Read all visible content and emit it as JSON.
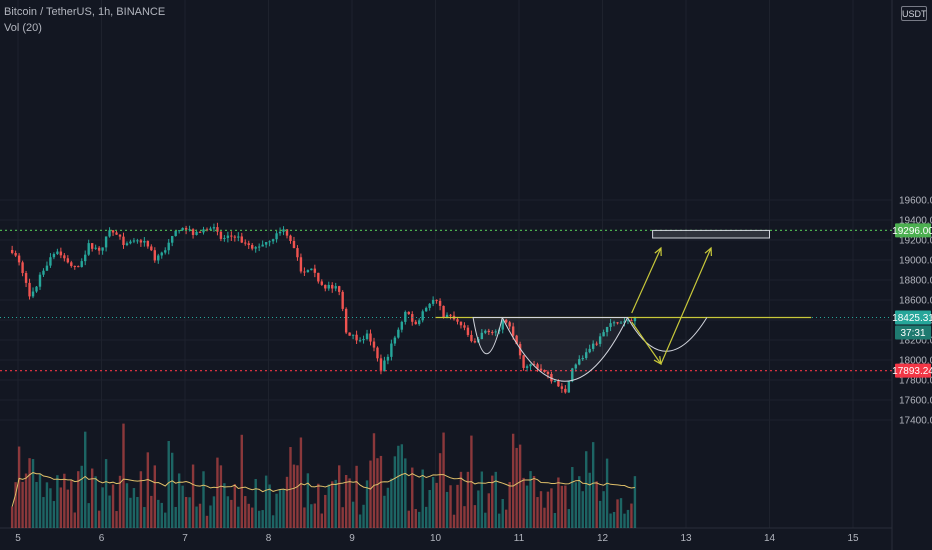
{
  "header": {
    "symbol": "Bitcoin / TetherUS, 1h, BINANCE",
    "volume_indicator": "Vol (20)"
  },
  "currency_label": "USDT",
  "colors": {
    "background": "#131722",
    "up_candle": "#26a69a",
    "down_candle": "#ef5350",
    "resistance": "#4caf50",
    "support": "#f23645",
    "annotation": "#c8c83a",
    "volume_ma": "#e0c06a"
  },
  "chart_data": {
    "type": "candlestick",
    "price_axis": {
      "ticks": [
        17400,
        17600,
        17800,
        18000,
        18200,
        18400,
        18600,
        18800,
        19000,
        19200,
        19400,
        19600
      ],
      "tick_labels": [
        "17400.00",
        "17600.00",
        "17800.00",
        "18000.00",
        "18200.00",
        "18400.00",
        "18600.00",
        "18800.00",
        "19000.00",
        "19200.00",
        "19400.00",
        "19600.00"
      ],
      "range": [
        17250,
        19600
      ]
    },
    "time_axis": {
      "labels": [
        "5",
        "6",
        "7",
        "8",
        "9",
        "10",
        "11",
        "12",
        "13",
        "14",
        "15"
      ],
      "day_range": [
        5,
        15.5
      ]
    },
    "price_tags": {
      "resistance": {
        "value": 19296.0,
        "label": "19296.00"
      },
      "current": {
        "value": 18425.31,
        "label": "18425.31",
        "countdown": "37:31"
      },
      "support": {
        "value": 17893.24,
        "label": "17893.24"
      }
    },
    "price_path": [
      [
        4.93,
        19100
      ],
      [
        5.05,
        18900
      ],
      [
        5.15,
        18600
      ],
      [
        5.3,
        18900
      ],
      [
        5.45,
        19100
      ],
      [
        5.7,
        18900
      ],
      [
        5.85,
        19150
      ],
      [
        6.0,
        19100
      ],
      [
        6.1,
        19300
      ],
      [
        6.3,
        19150
      ],
      [
        6.5,
        19200
      ],
      [
        6.65,
        19000
      ],
      [
        6.8,
        19150
      ],
      [
        6.95,
        19350
      ],
      [
        7.15,
        19250
      ],
      [
        7.3,
        19350
      ],
      [
        7.45,
        19200
      ],
      [
        7.6,
        19250
      ],
      [
        7.8,
        19100
      ],
      [
        8.0,
        19200
      ],
      [
        8.2,
        19300
      ],
      [
        8.3,
        19150
      ],
      [
        8.4,
        18850
      ],
      [
        8.5,
        18900
      ],
      [
        8.65,
        18750
      ],
      [
        8.85,
        18700
      ],
      [
        8.93,
        18300
      ],
      [
        9.05,
        18200
      ],
      [
        9.2,
        18250
      ],
      [
        9.35,
        17900
      ],
      [
        9.5,
        18200
      ],
      [
        9.65,
        18500
      ],
      [
        9.75,
        18350
      ],
      [
        9.9,
        18550
      ],
      [
        10.0,
        18600
      ],
      [
        10.1,
        18450
      ],
      [
        10.2,
        18420
      ],
      [
        10.35,
        18300
      ],
      [
        10.45,
        18150
      ],
      [
        10.6,
        18300
      ],
      [
        10.75,
        18250
      ],
      [
        10.8,
        18420
      ],
      [
        10.95,
        18250
      ],
      [
        11.05,
        17950
      ],
      [
        11.2,
        17950
      ],
      [
        11.4,
        17800
      ],
      [
        11.55,
        17650
      ],
      [
        11.65,
        17950
      ],
      [
        11.8,
        18050
      ],
      [
        11.95,
        18200
      ],
      [
        12.1,
        18350
      ],
      [
        12.2,
        18380
      ],
      [
        12.3,
        18400
      ],
      [
        12.4,
        18425
      ]
    ]
  },
  "annotations": {
    "neckline": 18425,
    "target_zone": {
      "low": 19220,
      "high": 19296,
      "x_start": 12.6,
      "x_end": 14.0
    }
  }
}
